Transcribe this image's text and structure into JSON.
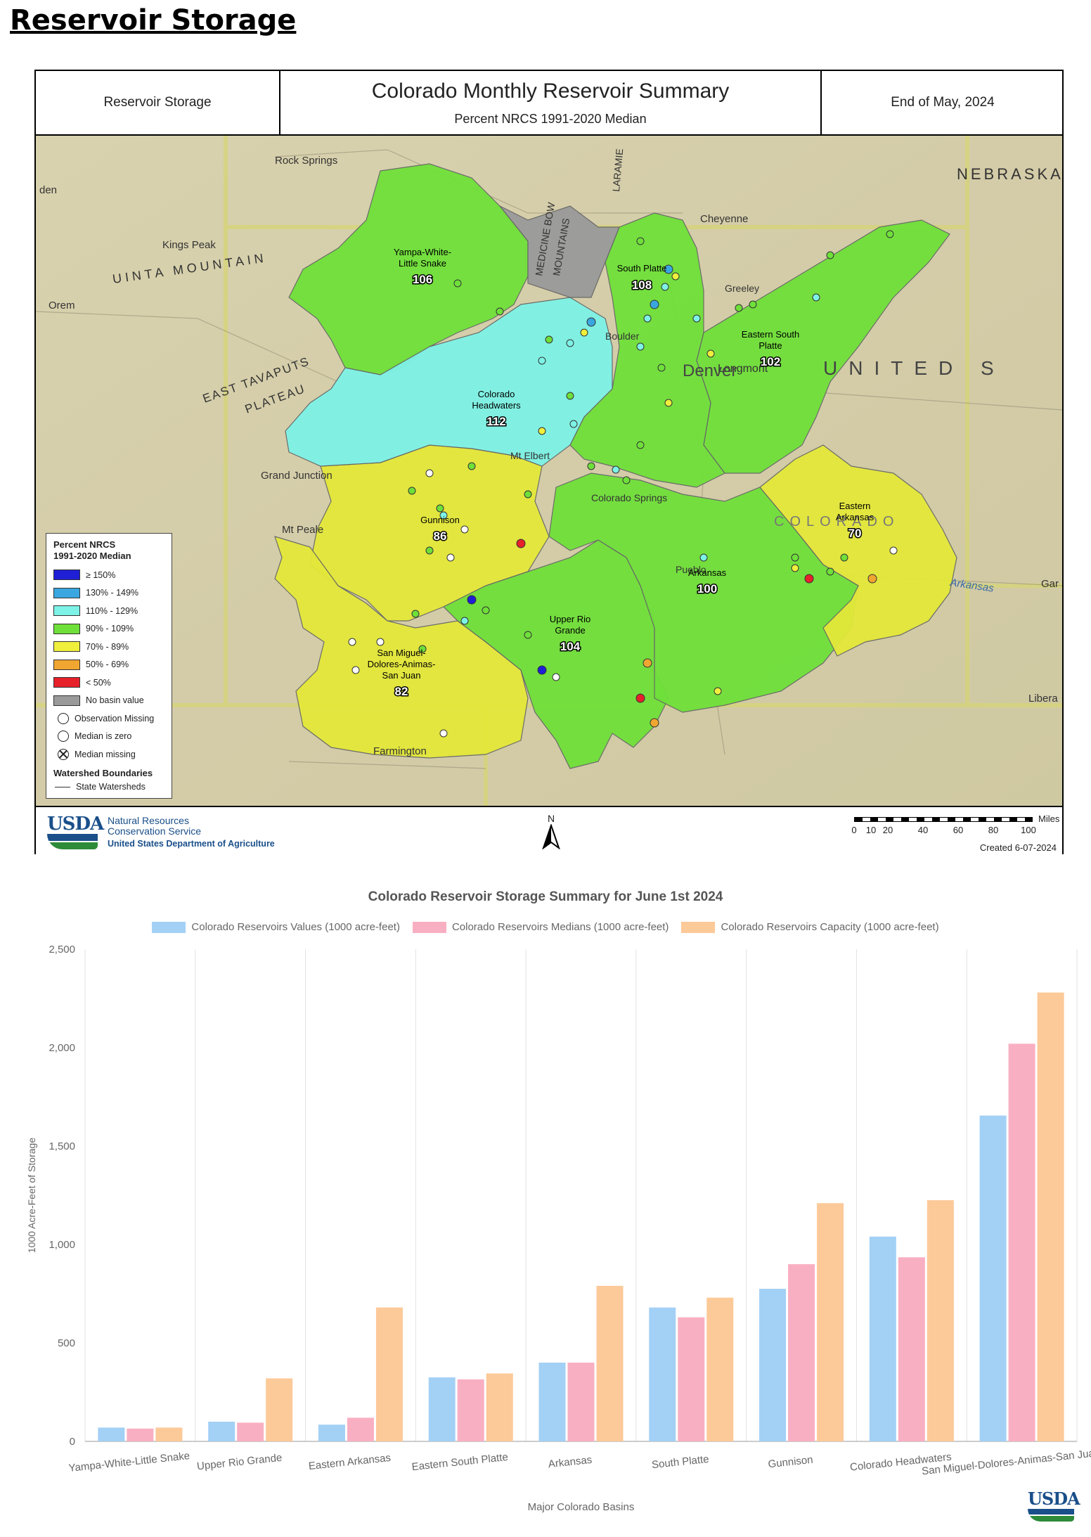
{
  "page": {
    "heading": "Reservoir Storage"
  },
  "map": {
    "header": {
      "left": "Reservoir Storage",
      "title": "Colorado Monthly Reservoir Summary",
      "subtitle": "Percent NRCS 1991-2020 Median",
      "right": "End of May, 2024"
    },
    "legend": {
      "title_line1": "Percent NRCS",
      "title_line2": "1991-2020 Median",
      "classes": [
        {
          "label": "≥ 150%",
          "color": "#1f1fd6"
        },
        {
          "label": "130% - 149%",
          "color": "#3aa6e0"
        },
        {
          "label": "110% - 129%",
          "color": "#7df2e6"
        },
        {
          "label": "90% - 109%",
          "color": "#6fe03a"
        },
        {
          "label": "70% - 89%",
          "color": "#f0ef3c"
        },
        {
          "label": "50% - 69%",
          "color": "#f0a630"
        },
        {
          "label": "< 50%",
          "color": "#e6212a"
        },
        {
          "label": "No basin value",
          "color": "#9a9a9a"
        }
      ],
      "symbols": {
        "observation_missing": "Observation Missing",
        "median_zero": "Median is zero",
        "median_missing": "Median missing"
      },
      "boundaries_title": "Watershed Boundaries",
      "boundaries_item": "State Watersheds"
    },
    "basins": [
      {
        "name_lines": [
          "Yampa-White-",
          "Little Snake"
        ],
        "value": "106",
        "color": "#6fe03a"
      },
      {
        "name_lines": [
          "South Platte"
        ],
        "value": "108",
        "color": "#6fe03a"
      },
      {
        "name_lines": [
          "Eastern South",
          "Platte"
        ],
        "value": "102",
        "color": "#6fe03a"
      },
      {
        "name_lines": [
          "Colorado",
          "Headwaters"
        ],
        "value": "112",
        "color": "#7df2e6"
      },
      {
        "name_lines": [
          "Gunnison"
        ],
        "value": "86",
        "color": "#e3e83a"
      },
      {
        "name_lines": [
          "Eastern",
          "Arkansas"
        ],
        "value": "70",
        "color": "#e3e83a"
      },
      {
        "name_lines": [
          "Arkansas"
        ],
        "value": "100",
        "color": "#6fe03a"
      },
      {
        "name_lines": [
          "Upper Rio",
          "Grande"
        ],
        "value": "104",
        "color": "#6fe03a"
      },
      {
        "name_lines": [
          "San Miguel-",
          "Dolores-Animas-",
          "San Juan"
        ],
        "value": "82",
        "color": "#e3e83a"
      }
    ],
    "place_labels": {
      "rock_springs": "Rock Springs",
      "cheyenne": "Cheyenne",
      "nebraska": "NEBRASKA",
      "kings_peak": "Kings Peak",
      "uinta": "UINTA MOUNTAIN",
      "orem": "Orem",
      "east_tavaputs": "EAST TAVAPUTS",
      "plateau": "PLATEAU",
      "grand_junction": "Grand Junction",
      "denver": "Denver",
      "united": "UNITED S",
      "greeley": "Greeley",
      "longmont": "Longmont",
      "boulder": "Boulder",
      "colorado_springs": "Colorado Springs",
      "pueblo": "Pueblo",
      "colorado": "COLORADO",
      "arkansas_river": "Arkansas",
      "garden_city": "Gar",
      "liberal": "Libera",
      "farmington": "Farmington",
      "mt_peale": "Mt Peale",
      "ogden_edge": "den",
      "medicine_bow": "MEDICINE BOW",
      "mountains": "MOUNTAINS",
      "laramie": "LARAMIE",
      "mtn_elbert": "Mt Elbert"
    },
    "footer": {
      "usda": "USDA",
      "agency_line1": "Natural Resources",
      "agency_line2": "Conservation Service",
      "department": "United States Department of Agriculture",
      "north": "N",
      "scale_unit": "Miles",
      "scale_ticks": [
        "0",
        "10",
        "20",
        "40",
        "60",
        "80",
        "100"
      ],
      "created": "Created 6-07-2024"
    }
  },
  "chart_data": {
    "type": "bar",
    "title": "Colorado Reservoir Storage Summary for June 1st 2024",
    "xlabel": "Major Colorado Basins",
    "ylabel": "1000 Acre-Feet of Storage",
    "ylim": [
      0,
      2500
    ],
    "yticks": [
      "0",
      "500",
      "1,000",
      "1,500",
      "2,000",
      "2,500"
    ],
    "ytick_values": [
      0,
      500,
      1000,
      1500,
      2000,
      2500
    ],
    "legend_position": "top",
    "categories": [
      "Yampa-White-Little Snake",
      "Upper Rio Grande",
      "Eastern Arkansas",
      "Eastern South Platte",
      "Arkansas",
      "South Platte",
      "Gunnison",
      "Colorado Headwaters",
      "San Miguel-Dolores-Animas-San Juan"
    ],
    "series": [
      {
        "name": "Colorado Reservoirs Values (1000 acre-feet)",
        "color": "#a3d0f5",
        "values": [
          70,
          100,
          85,
          325,
          400,
          680,
          775,
          1040,
          1655
        ]
      },
      {
        "name": "Colorado Reservoirs Medians (1000 acre-feet)",
        "color": "#f9afc2",
        "values": [
          65,
          95,
          120,
          315,
          400,
          630,
          900,
          935,
          2020
        ]
      },
      {
        "name": "Colorado Reservoirs Capacity (1000 acre-feet)",
        "color": "#fcc998",
        "values": [
          70,
          320,
          680,
          345,
          790,
          730,
          1210,
          1225,
          2280
        ]
      }
    ]
  },
  "bottom_logo": {
    "usda": "USDA"
  }
}
